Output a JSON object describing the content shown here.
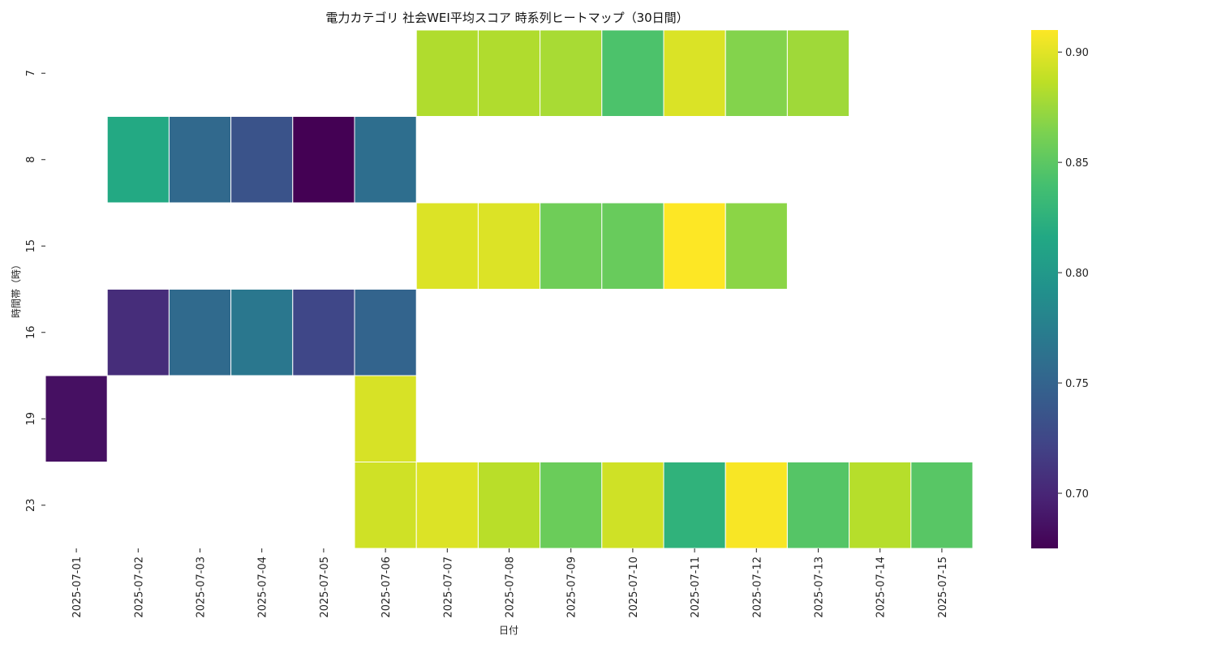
{
  "chart_data": {
    "type": "heatmap",
    "title": "電力カテゴリ 社会WEI平均スコア 時系列ヒートマップ（30日間）",
    "xlabel": "日付",
    "ylabel": "時間帯（時）",
    "x": [
      "2025-07-01",
      "2025-07-02",
      "2025-07-03",
      "2025-07-04",
      "2025-07-05",
      "2025-07-06",
      "2025-07-07",
      "2025-07-08",
      "2025-07-09",
      "2025-07-10",
      "2025-07-11",
      "2025-07-12",
      "2025-07-13",
      "2025-07-14",
      "2025-07-15"
    ],
    "y": [
      "7",
      "8",
      "15",
      "16",
      "19",
      "23"
    ],
    "values": [
      [
        null,
        null,
        null,
        null,
        null,
        null,
        0.882,
        0.882,
        0.879,
        0.843,
        0.897,
        0.866,
        0.876,
        null,
        null
      ],
      [
        null,
        0.817,
        0.755,
        0.735,
        0.675,
        0.76,
        null,
        null,
        null,
        null,
        null,
        null,
        null,
        null,
        null
      ],
      [
        null,
        null,
        null,
        null,
        null,
        null,
        0.898,
        0.898,
        0.858,
        0.855,
        0.91,
        0.869,
        null,
        null,
        null
      ],
      [
        null,
        0.705,
        0.756,
        0.768,
        0.725,
        0.75,
        null,
        null,
        null,
        null,
        null,
        null,
        null,
        null,
        null
      ],
      [
        0.685,
        null,
        null,
        null,
        null,
        0.896,
        null,
        null,
        null,
        null,
        null,
        null,
        null,
        null,
        null
      ],
      [
        null,
        null,
        null,
        null,
        null,
        0.893,
        0.898,
        0.885,
        0.856,
        0.893,
        0.826,
        0.908,
        0.847,
        0.884,
        0.848
      ]
    ],
    "colorbar": {
      "colormap": "viridis",
      "range": [
        0.675,
        0.91
      ],
      "ticks": [
        0.7,
        0.75,
        0.8,
        0.85,
        0.9
      ],
      "tick_labels": [
        "0.70",
        "0.75",
        "0.80",
        "0.85",
        "0.90"
      ]
    },
    "grid": false
  }
}
